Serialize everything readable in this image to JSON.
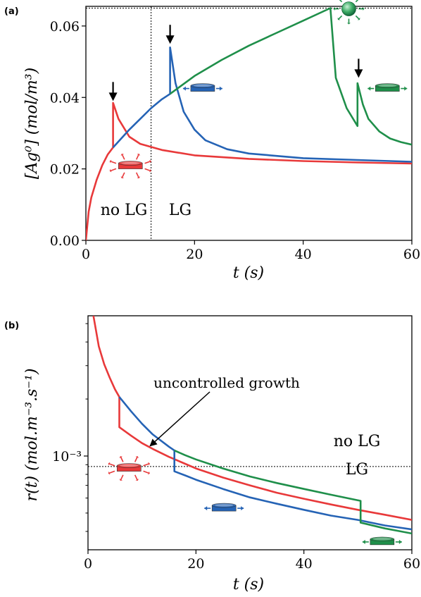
{
  "colors": {
    "red": "#e8393a",
    "blue": "#2563b5",
    "green": "#1f8f4a",
    "axis": "#000000"
  },
  "chart_data": [
    {
      "panel": "(a)",
      "type": "line",
      "xlabel": "t (s)",
      "ylabel": "[Ag⁰] (mol/m³)",
      "xlim": [
        0,
        60
      ],
      "ylim": [
        0,
        0.0655
      ],
      "x_ticks": [
        "0",
        "20",
        "40",
        "60"
      ],
      "y_ticks": [
        "0.00",
        "0.02",
        "0.04",
        "0.06"
      ],
      "x_tick_values": [
        0,
        20,
        40,
        60
      ],
      "y_tick_values": [
        0,
        0.02,
        0.04,
        0.06
      ],
      "hline": 0.065,
      "vline": 12,
      "region_labels": [
        "no LG",
        "LG"
      ],
      "series": [
        {
          "color": "red",
          "x": [
            0,
            0.5,
            1,
            2,
            3,
            4,
            5,
            5,
            6,
            8,
            10,
            14,
            20,
            30,
            40,
            50,
            60
          ],
          "y": [
            0,
            0.008,
            0.012,
            0.017,
            0.021,
            0.024,
            0.026,
            0.0385,
            0.034,
            0.029,
            0.027,
            0.0253,
            0.0238,
            0.0228,
            0.0222,
            0.0218,
            0.0215
          ]
        },
        {
          "color": "blue",
          "x": [
            5,
            8,
            10,
            12,
            14,
            15.5,
            15.5,
            16.5,
            18,
            20,
            22,
            26,
            30,
            40,
            50,
            60
          ],
          "y": [
            0.026,
            0.031,
            0.034,
            0.037,
            0.0395,
            0.041,
            0.054,
            0.044,
            0.036,
            0.031,
            0.028,
            0.0255,
            0.0243,
            0.023,
            0.0225,
            0.022
          ]
        },
        {
          "color": "green",
          "x": [
            15.5,
            20,
            25,
            30,
            35,
            40,
            45,
            45,
            46,
            48,
            50,
            50,
            51,
            52,
            54,
            56,
            58,
            60
          ],
          "y": [
            0.041,
            0.046,
            0.0505,
            0.0545,
            0.058,
            0.0615,
            0.065,
            0.065,
            0.0455,
            0.037,
            0.032,
            0.044,
            0.038,
            0.034,
            0.0305,
            0.0285,
            0.0275,
            0.0268
          ]
        }
      ],
      "markers": [
        {
          "kind": "arrow",
          "x": 5,
          "y": 0.039
        },
        {
          "kind": "arrow",
          "x": 15.5,
          "y": 0.055
        },
        {
          "kind": "arrow",
          "x": 50.2,
          "y": 0.0455
        },
        {
          "kind": "disk-glow",
          "color": "red",
          "x": 8.2,
          "y": 0.0208
        },
        {
          "kind": "disk-side",
          "color": "blue",
          "x": 21.5,
          "y": 0.0425
        },
        {
          "kind": "sphere-glow",
          "color": "green",
          "x": 48.4,
          "y": 0.0648
        },
        {
          "kind": "disk-side",
          "color": "green",
          "x": 55.5,
          "y": 0.0425
        }
      ]
    },
    {
      "panel": "(b)",
      "type": "line",
      "xlabel": "t (s)",
      "ylabel": "r(t) (mol.m⁻³.s⁻¹)",
      "yscale": "log",
      "xlim": [
        0,
        60
      ],
      "ylim": [
        0.00032,
        0.0055
      ],
      "x_ticks": [
        "0",
        "20",
        "40",
        "60"
      ],
      "x_tick_values": [
        0,
        20,
        40,
        60
      ],
      "y_ticks": [
        "10⁻³"
      ],
      "y_tick_values": [
        0.001
      ],
      "hline": 0.00088,
      "region_labels": [
        "no LG",
        "LG"
      ],
      "annotation": "uncontrolled growth",
      "annotation_arrow_to": [
        11.5,
        0.00113
      ],
      "series": [
        {
          "color": "red",
          "x": [
            1,
            2,
            3,
            4,
            5,
            5.8,
            5.8,
            8,
            10,
            12,
            15,
            18,
            20,
            25,
            30,
            35,
            40,
            45,
            50,
            55,
            60
          ],
          "y": [
            0.0055,
            0.0038,
            0.00305,
            0.0026,
            0.00225,
            0.00205,
            0.00142,
            0.00128,
            0.00117,
            0.00109,
            0.00099,
            0.00091,
            0.00086,
            0.00077,
            0.0007,
            0.00064,
            0.000595,
            0.000555,
            0.00052,
            0.00049,
            0.00046
          ]
        },
        {
          "color": "blue",
          "x": [
            5.8,
            8,
            10,
            12,
            15,
            16,
            16,
            18,
            20,
            25,
            30,
            35,
            40,
            45,
            50,
            55,
            60
          ],
          "y": [
            0.00205,
            0.00172,
            0.00148,
            0.0013,
            0.00112,
            0.00107,
            0.00083,
            0.00079,
            0.00075,
            0.00067,
            0.000605,
            0.00056,
            0.00052,
            0.000485,
            0.00046,
            0.00043,
            0.00041
          ]
        },
        {
          "color": "green",
          "x": [
            16,
            18,
            20,
            25,
            30,
            35,
            40,
            45,
            50.5,
            50.5,
            52,
            55,
            58,
            60
          ],
          "y": [
            0.00107,
            0.00101,
            0.00096,
            0.00086,
            0.00078,
            0.00072,
            0.00067,
            0.000625,
            0.00058,
            0.000445,
            0.000435,
            0.000415,
            0.0004,
            0.00039
          ]
        }
      ],
      "markers": [
        {
          "kind": "disk-glow",
          "color": "red",
          "x": 7.6,
          "y": 0.00086
        },
        {
          "kind": "disk-side",
          "color": "blue",
          "x": 25.2,
          "y": 0.00053
        },
        {
          "kind": "disk-side",
          "color": "green",
          "x": 54.5,
          "y": 0.000352
        }
      ]
    }
  ]
}
